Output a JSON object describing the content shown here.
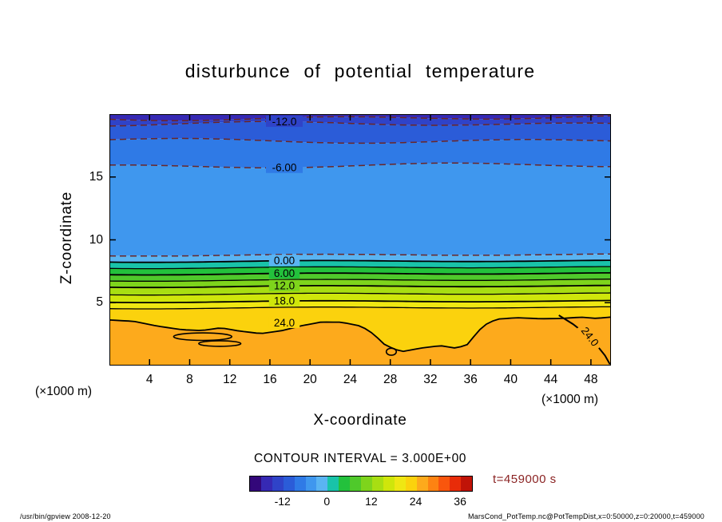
{
  "title": "disturbunce of potential temperature",
  "axes": {
    "x": {
      "label": "X-coordinate",
      "unit": "(×1000 m)",
      "tick_values": [
        4,
        8,
        12,
        16,
        20,
        24,
        28,
        32,
        36,
        40,
        44,
        48
      ],
      "range_km": [
        0,
        50
      ]
    },
    "y": {
      "label": "Z-coordinate",
      "unit": "(×1000 m)",
      "tick_values": [
        5,
        10,
        15
      ],
      "range_km": [
        0,
        20
      ]
    }
  },
  "caption": {
    "contour_interval": "CONTOUR INTERVAL = 3.000E+00",
    "time": "t=459000 s"
  },
  "footer": {
    "left": "/usr/bin/gpview  2008-12-20",
    "right": "MarsCond_PotTemp.nc@PotTempDist,x=0:50000,z=0:20000,t=459000"
  },
  "colors": {
    "line": "#000000",
    "dashed_line": "#6b2727",
    "time_label": "#8b2323",
    "background": "#ffffff"
  },
  "chart_data": {
    "type": "heatmap",
    "subtype": "filled_contour",
    "title": "disturbunce of potential temperature",
    "xlabel": "X-coordinate (×1000 m)",
    "ylabel": "Z-coordinate (×1000 m)",
    "x_range": [
      0,
      50
    ],
    "y_range": [
      0,
      20
    ],
    "contour_interval": 3.0,
    "negative_contours_dashed": true,
    "levels": [
      {
        "value": -15,
        "z": 19.7,
        "style": "dashed"
      },
      {
        "value": -12,
        "z": 19.2,
        "style": "dashed",
        "label": "-12.0"
      },
      {
        "value": -9,
        "z": 17.9,
        "style": "dashed"
      },
      {
        "value": -6,
        "z": 15.9,
        "style": "dashed",
        "label": "-6.00"
      },
      {
        "value": -3,
        "z": 8.8,
        "style": "dashed"
      },
      {
        "value": 0,
        "z": 8.3,
        "style": "solid",
        "label": "0.00"
      },
      {
        "value": 3,
        "z": 7.8,
        "style": "solid"
      },
      {
        "value": 6,
        "z": 7.3,
        "style": "solid",
        "label": "6.00"
      },
      {
        "value": 9,
        "z": 6.8,
        "style": "solid"
      },
      {
        "value": 12,
        "z": 6.3,
        "style": "solid",
        "label": "12.0"
      },
      {
        "value": 15,
        "z": 5.7,
        "style": "solid"
      },
      {
        "value": 18,
        "z": 5.1,
        "style": "solid",
        "label": "18.0"
      },
      {
        "value": 21,
        "z": 4.6,
        "style": "solid"
      },
      {
        "value": 24,
        "z": 3.8,
        "style": "solid",
        "label": "24.0"
      }
    ],
    "band_colors": [
      "#3629b4",
      "#2f43c8",
      "#2b5cd8",
      "#2f7ae6",
      "#3f97ee",
      "#5ab4f2",
      "#19c3a9",
      "#23c13c",
      "#4fc92b",
      "#7ed41c",
      "#a8de12",
      "#cfe60b",
      "#efe713",
      "#fbd20d",
      "#fdaa1c"
    ],
    "contour24_points": [
      [
        0,
        3.7
      ],
      [
        2.4,
        3.6
      ],
      [
        4.8,
        3.2
      ],
      [
        7.2,
        2.9
      ],
      [
        9.2,
        2.8
      ],
      [
        11.1,
        3.0
      ],
      [
        13.1,
        2.7
      ],
      [
        15.1,
        2.5
      ],
      [
        17.1,
        2.7
      ],
      [
        19.1,
        3.1
      ],
      [
        21.1,
        3.4
      ],
      [
        23.1,
        3.4
      ],
      [
        25.1,
        3.1
      ],
      [
        26.3,
        2.5
      ],
      [
        27.5,
        1.6
      ],
      [
        29.1,
        1.1
      ],
      [
        31.1,
        1.4
      ],
      [
        33.0,
        1.6
      ],
      [
        34.6,
        1.4
      ],
      [
        35.7,
        1.7
      ],
      [
        36.5,
        2.5
      ],
      [
        37.3,
        3.2
      ],
      [
        38.6,
        3.7
      ],
      [
        40.6,
        3.8
      ],
      [
        43.0,
        3.7
      ],
      [
        45.0,
        3.7
      ],
      [
        47.0,
        3.8
      ],
      [
        48.5,
        3.7
      ],
      [
        50,
        3.8
      ]
    ],
    "contour24_branch": [
      [
        44.8,
        4.0
      ],
      [
        46.2,
        3.3
      ],
      [
        47.5,
        2.5
      ],
      [
        48.6,
        1.6
      ],
      [
        49.4,
        0.8
      ],
      [
        49.9,
        0.1
      ]
    ],
    "right_label": {
      "text": "24.0",
      "x": 47.9,
      "z": 2.3,
      "angle": 52
    },
    "closed_contours": [
      {
        "cx": 9.3,
        "cz": 2.3,
        "rx": 2.9,
        "rz": 0.3
      },
      {
        "cx": 11.0,
        "cz": 1.75,
        "rx": 2.1,
        "rz": 0.22
      },
      {
        "cx": 28.1,
        "cz": 1.1,
        "rx": 0.5,
        "rz": 0.28
      }
    ],
    "colorbar": {
      "min": -21,
      "max": 39,
      "interval": 3,
      "colors": [
        "#33077a",
        "#3629b4",
        "#2f43c8",
        "#2b5cd8",
        "#2f7ae6",
        "#3f97ee",
        "#5ab4f2",
        "#19c3a9",
        "#23c13c",
        "#4fc92b",
        "#7ed41c",
        "#a8de12",
        "#cfe60b",
        "#efe713",
        "#fbd20d",
        "#fdaa1c",
        "#fd8312",
        "#f9560d",
        "#e82c09",
        "#c01307"
      ],
      "tick_values": [
        -12,
        0,
        12,
        24,
        36
      ]
    }
  }
}
